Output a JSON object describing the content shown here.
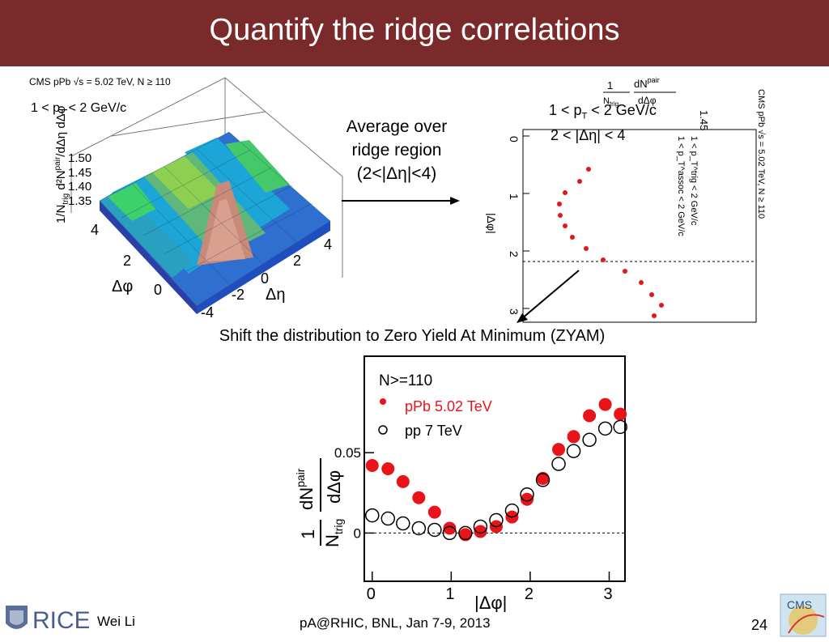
{
  "slide": {
    "title": "Quantify the ridge correlations",
    "page_number": "24",
    "author": "Wei Li",
    "event": "pA@RHIC, BNL, Jan 7-9, 2013",
    "logo_rice": "RICE",
    "logo_cms": "CMS"
  },
  "colors": {
    "title_bar": "#7a2a2a",
    "ppb": "#e8141a",
    "pp": "#000000"
  },
  "surface_plot": {
    "header": "CMS pPb √s = 5.02 TeV, N ≥ 110",
    "pt_label": "1 < p",
    "pt_sub": "T",
    "pt_rest": " < 2 GeV/c",
    "z_ticks": [
      "1.50",
      "1.45",
      "1.40",
      "1.35"
    ],
    "phi_ticks": [
      "4",
      "2",
      "0"
    ],
    "eta_ticks": [
      "4",
      "2",
      "0",
      "-2",
      "-4"
    ],
    "phi_label": "Δφ",
    "eta_label": "Δη",
    "zlabel": "1/N_trig d²N^pair/dΔη dΔφ"
  },
  "annotation": {
    "line1": "Average over",
    "line2": "ridge region",
    "line3": "(2<|Δη|<4)",
    "shift_text": "Shift the distribution to Zero Yield At Minimum (ZYAM)"
  },
  "projection_plot": {
    "header": "CMS pPb √s = 5.02 TeV, N ≥ 110",
    "pt_trig": "1 < p_T^trig < 2 GeV/c",
    "pt_assoc": "1 < p_T^assoc < 2 GeV/c",
    "label_pt": "1 < p",
    "label_pt_sub": "T",
    "label_pt_rest": " < 2 GeV/c",
    "label_eta": "2 < |Δη| < 4",
    "ytop_tick": "1.45",
    "axis_label": "|Δφ|",
    "ticks": [
      "0",
      "1",
      "2",
      "3"
    ]
  },
  "chart_data": {
    "type": "scatter",
    "xlabel": "|Δφ|",
    "ylabel": "1/N_trig dN^pair/dΔφ",
    "xlim": [
      -0.1,
      3.2
    ],
    "ylim": [
      -0.03,
      0.11
    ],
    "x_ticks": [
      "0",
      "1",
      "2",
      "3"
    ],
    "y_ticks": [
      "0",
      "0.05"
    ],
    "legend_title": "N>=110",
    "legend_position": "top-left",
    "series": [
      {
        "name": "pPb 5.02 TeV",
        "marker": "filled-circle",
        "color": "#e8141a",
        "x": [
          0.0,
          0.2,
          0.39,
          0.59,
          0.79,
          0.98,
          1.18,
          1.37,
          1.57,
          1.77,
          1.96,
          2.16,
          2.36,
          2.55,
          2.75,
          2.95,
          3.14
        ],
        "y": [
          0.042,
          0.04,
          0.032,
          0.022,
          0.013,
          0.003,
          -0.001,
          0.001,
          0.004,
          0.01,
          0.021,
          0.034,
          0.052,
          0.06,
          0.073,
          0.08,
          0.074
        ]
      },
      {
        "name": "pp 7 TeV",
        "marker": "open-circle",
        "color": "#000000",
        "x": [
          0.0,
          0.2,
          0.39,
          0.59,
          0.79,
          0.98,
          1.18,
          1.37,
          1.57,
          1.77,
          1.96,
          2.16,
          2.36,
          2.55,
          2.75,
          2.95,
          3.14
        ],
        "y": [
          0.011,
          0.009,
          0.006,
          0.003,
          0.002,
          0.0,
          0.0,
          0.004,
          0.008,
          0.014,
          0.024,
          0.033,
          0.043,
          0.051,
          0.058,
          0.065,
          0.066
        ]
      }
    ]
  }
}
